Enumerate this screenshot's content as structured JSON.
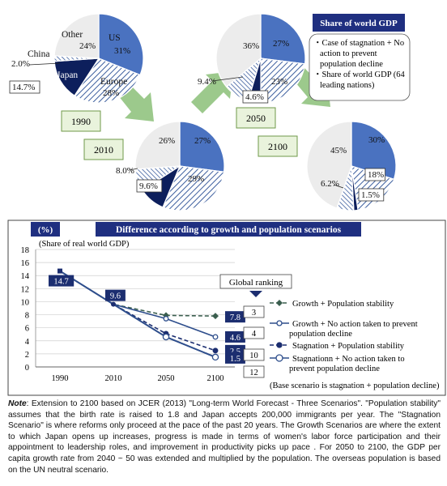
{
  "pies_header": {
    "title": "Share of world GDP",
    "legend_items": [
      "・Case of stagnation + No action to prevent population decline",
      "・Share of world GDP (64 leading nations)"
    ]
  },
  "pies": [
    {
      "year": "1990",
      "slices": [
        {
          "key": "US",
          "name": "US",
          "value": 31,
          "label": "31%"
        },
        {
          "key": "Europe",
          "name": "Europe",
          "value": 28,
          "label": "28%"
        },
        {
          "key": "Japan",
          "name": "Japan",
          "value": 14.7,
          "label": "14.7%"
        },
        {
          "key": "China",
          "name": "China",
          "value": 2.0,
          "label": "2.0%"
        },
        {
          "key": "Other",
          "name": "Other",
          "value": 24,
          "label": "24%"
        }
      ]
    },
    {
      "year": "2010",
      "slices": [
        {
          "key": "US",
          "value": 27,
          "label": "27%"
        },
        {
          "key": "Europe",
          "value": 29,
          "label": "29%"
        },
        {
          "key": "Japan",
          "value": 9.6,
          "label": "9.6%"
        },
        {
          "key": "China",
          "value": 8.0,
          "label": "8.0%"
        },
        {
          "key": "Other",
          "value": 26,
          "label": "26%"
        }
      ]
    },
    {
      "year": "2050",
      "slices": [
        {
          "key": "US",
          "value": 27,
          "label": "27%"
        },
        {
          "key": "Europe",
          "value": 23,
          "label": "23%"
        },
        {
          "key": "Japan",
          "value": 4.6,
          "label": "4.6%"
        },
        {
          "key": "China",
          "value": 9.4,
          "label": "9.4%"
        },
        {
          "key": "Other",
          "value": 36,
          "label": "36%"
        }
      ]
    },
    {
      "year": "2100",
      "slices": [
        {
          "key": "US",
          "value": 30,
          "label": "30%"
        },
        {
          "key": "Europe",
          "value": 18,
          "label": "18%"
        },
        {
          "key": "Japan",
          "value": 1.5,
          "label": "1.5%"
        },
        {
          "key": "China",
          "value": 6.2,
          "label": "6.2%"
        },
        {
          "key": "Other",
          "value": 45,
          "label": "45%"
        }
      ]
    }
  ],
  "colors": {
    "us": "#4a72c0",
    "japan": "#0d1f5c",
    "other": "#ececec",
    "hatch": "#3c5e9e",
    "arrow": "#9cc98c",
    "banner_bg": "#1f2f80",
    "year_box_bg": "#e9f3dc",
    "year_box_border": "#6f9a4a",
    "line_navy": "#1c2e70",
    "line_blue": "#2e4e8c"
  },
  "chart_data": {
    "type": "line",
    "title": "Difference according to growth and population scenarios",
    "ylabel": "(%)",
    "subtitle": "(Share of real world GDP)",
    "x": [
      "1990",
      "2010",
      "2050",
      "2100"
    ],
    "ylim": [
      0,
      18
    ],
    "yticks": [
      0,
      2,
      4,
      6,
      8,
      10,
      12,
      14,
      16,
      18
    ],
    "grid": true,
    "series": [
      {
        "name": "Growth + Population stability",
        "values": [
          14.7,
          9.6,
          7.9,
          7.8
        ]
      },
      {
        "name": "Growth + No action taken to prevent population decline",
        "values": [
          14.7,
          9.6,
          7.4,
          4.6
        ]
      },
      {
        "name": "Stagnation + Population stability",
        "values": [
          14.7,
          9.6,
          5.1,
          2.5
        ]
      },
      {
        "name": "Stagnationn + No action taken to prevent population decline",
        "values": [
          14.7,
          9.6,
          4.6,
          1.5
        ]
      }
    ],
    "data_labels": [
      {
        "x": "1990",
        "text": "14.7"
      },
      {
        "x": "2010",
        "text": "9.6"
      },
      {
        "x": "2100",
        "text": "7.8"
      },
      {
        "x": "2100",
        "text": "4.6"
      },
      {
        "x": "2100",
        "text": "2.5"
      },
      {
        "x": "2100",
        "text": "1.5"
      }
    ],
    "ranking_title": "Global ranking",
    "rankings": [
      "3",
      "4",
      "10",
      "12"
    ],
    "legend_note": "(Base scenario is stagnation + population decline)"
  },
  "note": {
    "label": "Note",
    "text": ": Extension to 2100 based on JCER (2013) \"Long-term World Forecast - Three Scenarios\". \"Population stability\" assumes that the birth rate is raised to 1.8 and Japan accepts 200,000 immigrants per year. The \"Stagnation Scenario\" is where reforms only proceed at the pace of the past 20 years. The Growth Scenarios are where the extent to which Japan opens up increases, progress is made in terms of women's labor force participation and their appointment to leadership roles, and  improvement in productivity picks up pace . For 2050 to 2100, the GDP per capita growth rate from 2040 ~ 50 was extended and multiplied by the population. The overseas population is based on the UN neutral scenario."
  }
}
